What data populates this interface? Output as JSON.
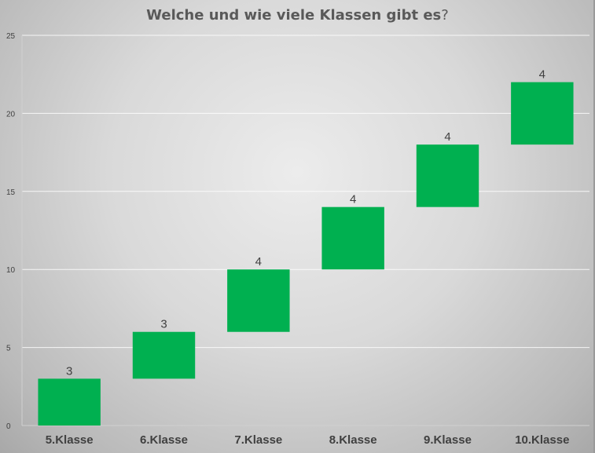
{
  "chart_data": {
    "type": "bar",
    "subtype": "waterfall",
    "title_main": "Welche und wie viele Klassen gibt es",
    "title_end": "?",
    "categories": [
      "5.Klasse",
      "6.Klasse",
      "7.Klasse",
      "8.Klasse",
      "9.Klasse",
      "10.Klasse"
    ],
    "values": [
      3,
      3,
      4,
      4,
      4,
      4
    ],
    "base": [
      0,
      3,
      6,
      10,
      14,
      18
    ],
    "ylim": [
      0,
      25
    ],
    "yticks": [
      0,
      5,
      10,
      15,
      20,
      25
    ],
    "grid": true,
    "bar_color": "#00b050"
  }
}
